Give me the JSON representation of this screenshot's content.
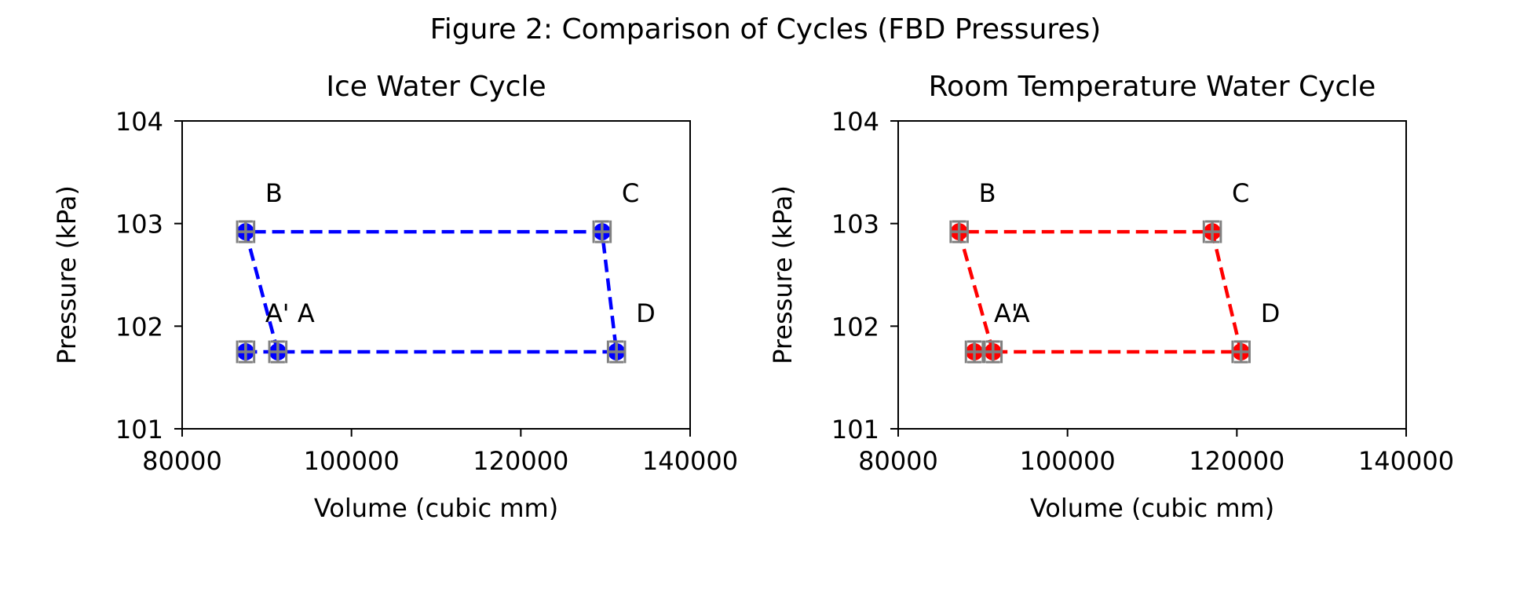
{
  "figure": {
    "suptitle": "Figure 2: Comparison of Cycles (FBD Pressures)"
  },
  "chart_data": [
    {
      "type": "line",
      "title": "Ice Water Cycle",
      "xlabel": "Volume (cubic mm)",
      "ylabel": "Pressure (kPa)",
      "xlim": [
        80000,
        140000
      ],
      "ylim": [
        101,
        104
      ],
      "xticks": [
        "80000",
        "100000",
        "120000",
        "140000"
      ],
      "yticks": [
        "101",
        "102",
        "103",
        "104"
      ],
      "color": "#0000ff",
      "errorbar_color": "#808080",
      "line_style": "dashed",
      "x_error": 1000,
      "y_error": 0.1,
      "grid": false,
      "points": [
        {
          "label": "A'",
          "x": 87500,
          "y": 101.75
        },
        {
          "label": "B",
          "x": 87500,
          "y": 102.92
        },
        {
          "label": "C",
          "x": 129600,
          "y": 102.92
        },
        {
          "label": "D",
          "x": 131300,
          "y": 101.75
        },
        {
          "label": "A",
          "x": 91300,
          "y": 101.75
        }
      ],
      "path_order": [
        "A",
        "B",
        "C",
        "D",
        "A'"
      ]
    },
    {
      "type": "line",
      "title": "Room Temperature Water Cycle",
      "xlabel": "Volume (cubic mm)",
      "ylabel": "Pressure (kPa)",
      "xlim": [
        80000,
        140000
      ],
      "ylim": [
        101,
        104
      ],
      "xticks": [
        "80000",
        "100000",
        "120000",
        "140000"
      ],
      "yticks": [
        "101",
        "102",
        "103",
        "104"
      ],
      "color": "#ff0000",
      "errorbar_color": "#808080",
      "line_style": "dashed",
      "x_error": 1000,
      "y_error": 0.1,
      "grid": false,
      "points": [
        {
          "label": "A'",
          "x": 89000,
          "y": 101.75
        },
        {
          "label": "B",
          "x": 87200,
          "y": 102.92
        },
        {
          "label": "C",
          "x": 117100,
          "y": 102.92
        },
        {
          "label": "D",
          "x": 120500,
          "y": 101.75
        },
        {
          "label": "A",
          "x": 91200,
          "y": 101.75
        }
      ],
      "path_order": [
        "A",
        "B",
        "C",
        "D",
        "A'"
      ]
    }
  ]
}
